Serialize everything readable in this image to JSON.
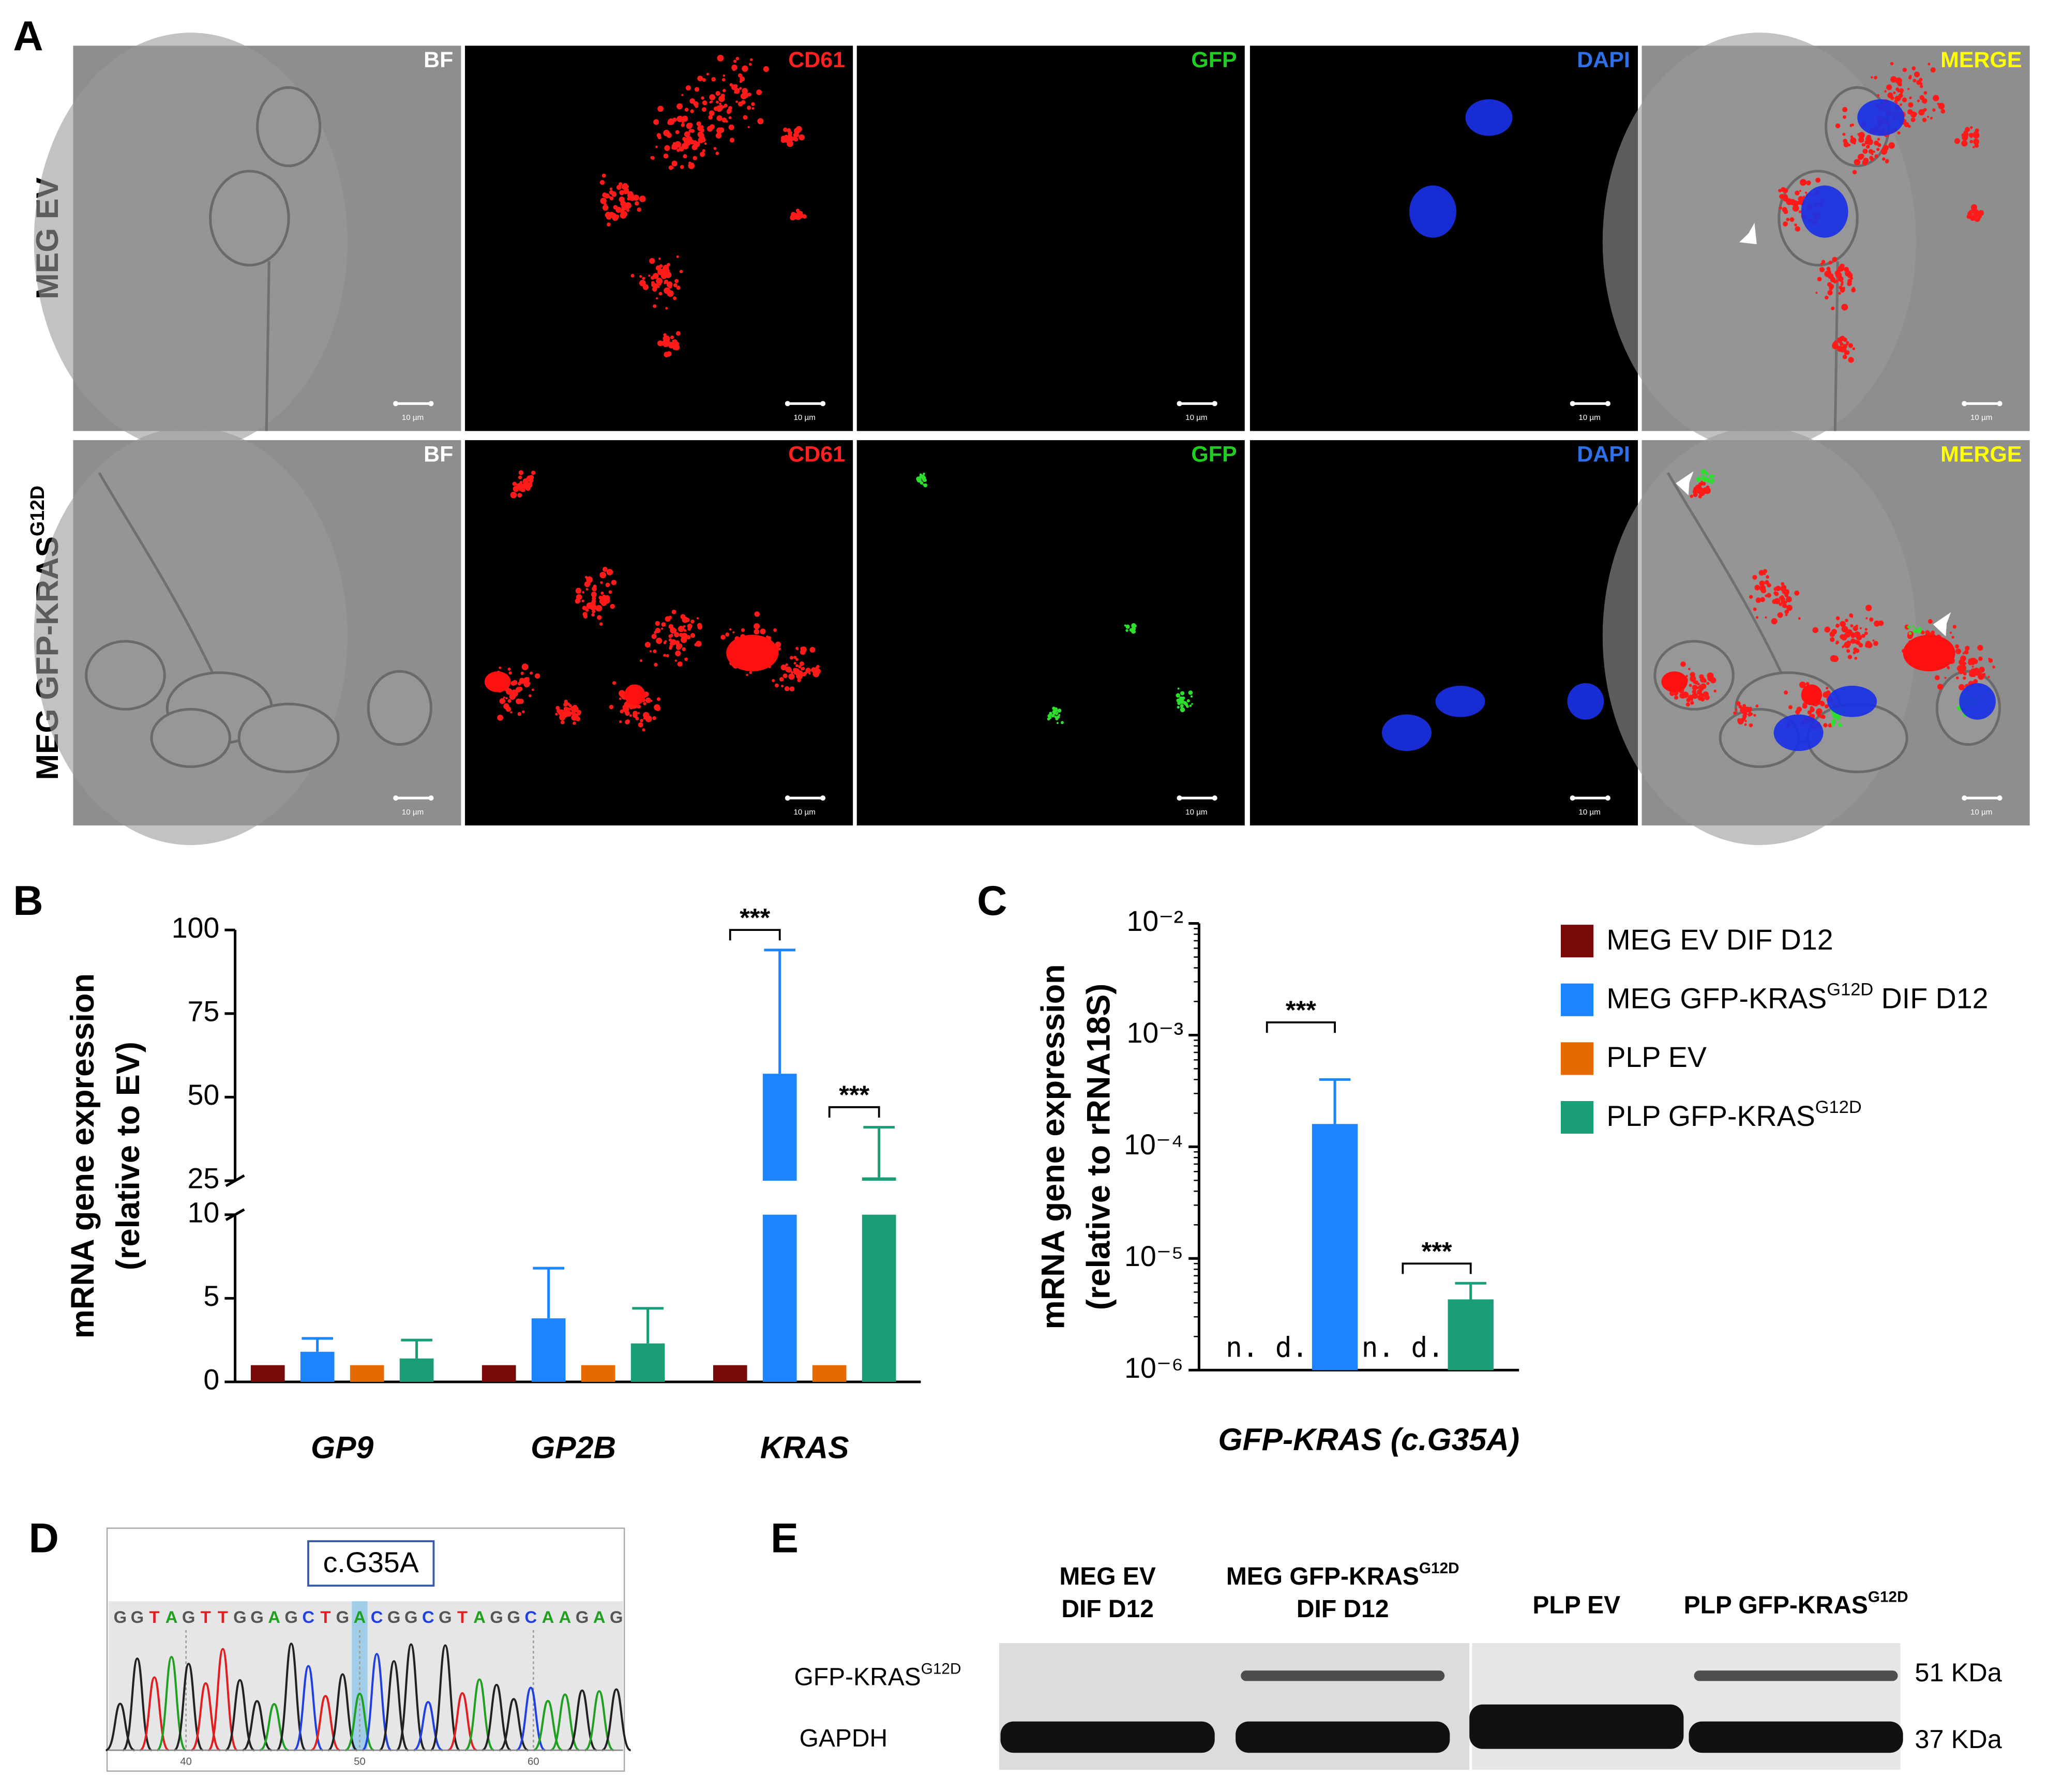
{
  "panel_labels": [
    "A",
    "B",
    "C",
    "D",
    "E"
  ],
  "panel_a": {
    "rows": [
      [
        "MEG EV"
      ],
      [
        "MEG GFP-KRAS",
        "G12D"
      ]
    ],
    "channels": [
      {
        "label": "BF",
        "color": "#ffffff"
      },
      {
        "label": "CD61",
        "color": "#ff2020"
      },
      {
        "label": "GFP",
        "color": "#22cc22"
      },
      {
        "label": "DAPI",
        "color": "#2f6fe8"
      },
      {
        "label": "MERGE",
        "color": "#ffff00"
      }
    ],
    "scale_bar": "10 µm"
  },
  "chart_data": [
    {
      "type": "bar",
      "categories": [
        "GP9",
        "GP2B",
        "KRAS"
      ],
      "ylabel": [
        "mRNA gene expression",
        "(relative to EV)"
      ],
      "ylim": [
        0,
        100
      ],
      "ybreak": [
        10,
        25
      ],
      "yticks": [
        0,
        5,
        10,
        25,
        50,
        75,
        100
      ],
      "series": [
        {
          "color": "#7a0a0a",
          "values": [
            1,
            1,
            1
          ]
        },
        {
          "color": "#1a85ff",
          "values": [
            1.8,
            3.8,
            57
          ],
          "errors": [
            0.8,
            3.0,
            37
          ]
        },
        {
          "color": "#e66a00",
          "values": [
            1,
            1,
            1
          ]
        },
        {
          "color": "#1a9e77",
          "values": [
            1.4,
            2.3,
            26
          ],
          "errors": [
            1.1,
            2.1,
            15
          ]
        }
      ],
      "annotations": [
        {
          "text": "***",
          "category": 2,
          "from": 0,
          "to": 1,
          "y": 100
        },
        {
          "text": "***",
          "category": 2,
          "from": 2,
          "to": 3,
          "y": 47
        }
      ]
    },
    {
      "type": "bar",
      "log_y": true,
      "categories": [
        "GFP-KRAS (c.G35A)"
      ],
      "ylabel": [
        "mRNA gene expression",
        "(relative to rRNA18S)"
      ],
      "ylim": [
        1e-06,
        0.01
      ],
      "yticks": [
        {
          "value": 1e-06,
          "label": "10⁻⁶"
        },
        {
          "value": 1e-05,
          "label": "10⁻⁵"
        },
        {
          "value": 0.0001,
          "label": "10⁻⁴"
        },
        {
          "value": 0.001,
          "label": "10⁻³"
        },
        {
          "value": 0.01,
          "label": "10⁻²"
        }
      ],
      "legend": "right",
      "series": [
        {
          "name": [
            "MEG EV DIF D12"
          ],
          "color": "#7a0a0a",
          "values": [
            null
          ],
          "value_labels": [
            "n. d."
          ]
        },
        {
          "name": [
            "MEG GFP-KRAS",
            "G12D",
            " DIF D12"
          ],
          "color": "#1a85ff",
          "values": [
            0.00016
          ],
          "errors": [
            0.00024
          ]
        },
        {
          "name": [
            "PLP EV"
          ],
          "color": "#e66a00",
          "values": [
            null
          ],
          "value_labels": [
            "n. d."
          ]
        },
        {
          "name": [
            "PLP GFP-KRAS",
            "G12D"
          ],
          "color": "#1a9e77",
          "values": [
            4.3e-06
          ],
          "errors": [
            1.7e-06
          ]
        }
      ],
      "annotations": [
        {
          "text": "***",
          "category": 0,
          "from": 0,
          "to": 1,
          "y": 0.0013
        },
        {
          "text": "***",
          "category": 0,
          "from": 2,
          "to": 3,
          "y": 9e-06
        }
      ]
    }
  ],
  "panel_d": {
    "box_label": "c.G35A",
    "sequence": [
      "G",
      "G",
      "T",
      "A",
      "G",
      "T",
      "T",
      "G",
      "G",
      "A",
      "G",
      "C",
      "T",
      "G",
      "A",
      "C",
      "G",
      "G",
      "C",
      "G",
      "T",
      "A",
      "G",
      "G",
      "C",
      "A",
      "A",
      "G",
      "A",
      "G"
    ],
    "highlight": 14,
    "positions": [
      40,
      50,
      60
    ]
  },
  "panel_e": {
    "columns": [
      [
        [
          "MEG EV"
        ],
        [
          "DIF D12"
        ]
      ],
      [
        [
          "MEG GFP-KRAS",
          "G12D"
        ],
        [
          "DIF D12"
        ]
      ],
      [
        [
          "PLP EV"
        ]
      ],
      [
        [
          "PLP GFP-KRAS",
          "G12D"
        ]
      ]
    ],
    "rows": [
      [
        "GFP-KRAS",
        "G12D"
      ],
      [
        "GAPDH"
      ]
    ],
    "sizes": [
      "51 KDa",
      "37 KDa"
    ]
  }
}
